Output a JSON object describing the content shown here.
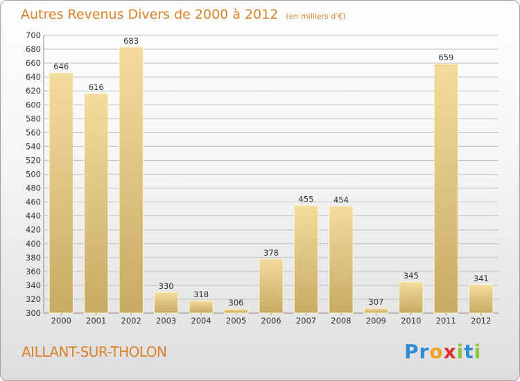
{
  "header": {
    "title": "Autres Revenus Divers de 2000 à 2012",
    "unit_note": "(en milliers d'€)"
  },
  "footer": {
    "city": "AILLANT-SUR-THOLON",
    "logo_text": "Proxiti",
    "logo_colors": [
      "#2e8bd6",
      "#2e8bd6",
      "#f0a020",
      "#e03030",
      "#8cc43c",
      "#2e8bd6",
      "#8cc43c"
    ]
  },
  "colors": {
    "bar_light": "#f3dc9e",
    "bar_dark": "#c8aa62",
    "grid": "#bfbfbf",
    "title": "#d9822b"
  },
  "chart_data": {
    "type": "bar",
    "title": "Autres Revenus Divers de 2000 à 2012",
    "subtitle": "(en milliers d'€)",
    "categories": [
      "2000",
      "2001",
      "2002",
      "2003",
      "2004",
      "2005",
      "2006",
      "2007",
      "2008",
      "2009",
      "2010",
      "2011",
      "2012"
    ],
    "values": [
      646,
      616,
      683,
      330,
      318,
      306,
      378,
      455,
      454,
      307,
      345,
      659,
      341
    ],
    "ylim": [
      300,
      700
    ],
    "ytick_step": 20,
    "grid": true,
    "data_labels": true
  }
}
